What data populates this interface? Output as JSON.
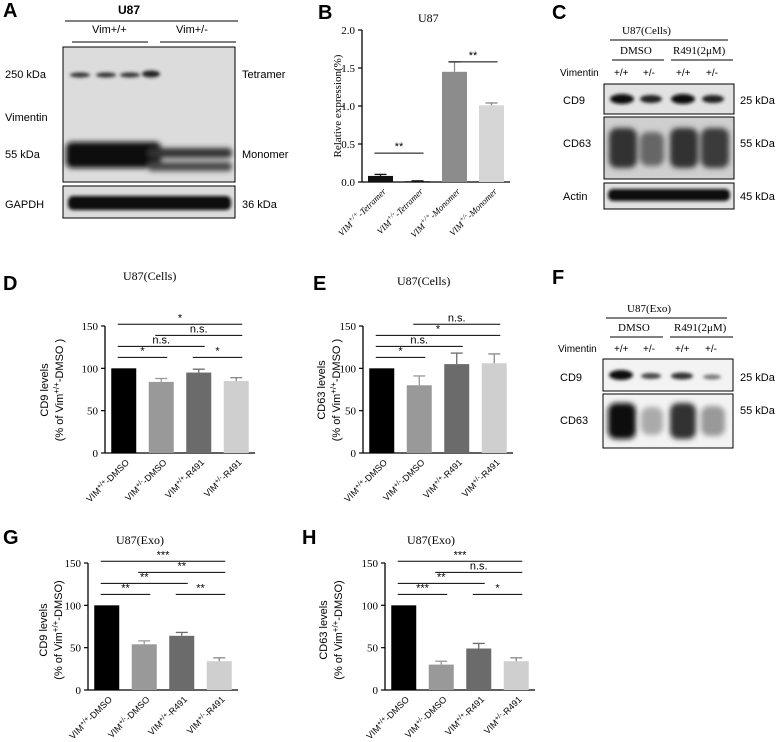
{
  "blot_A": {
    "label": "A",
    "cell": "U87",
    "groups": [
      "Vim+/+",
      "Vim+/-"
    ],
    "left_labels": [
      "250 kDa",
      "Vimentin",
      "55 kDa",
      "GAPDH"
    ],
    "right_labels": [
      "Tetramer",
      "Monomer",
      "36 kDa"
    ]
  },
  "blot_C": {
    "label": "C",
    "title": "U87(Cells)",
    "groups": [
      "DMSO",
      "R491(2μM)"
    ],
    "row_label": "Vimentin",
    "genotypes": [
      "+/+",
      "+/-",
      "+/+",
      "+/-"
    ],
    "proteins": [
      "CD9",
      "CD63",
      "Actin"
    ],
    "sizes": [
      "25 kDa",
      "55 kDa",
      "45 kDa"
    ]
  },
  "blot_F": {
    "label": "F",
    "title": "U87(Exo)",
    "groups": [
      "DMSO",
      "R491(2μM)"
    ],
    "row_label": "Vimentin",
    "genotypes": [
      "+/+",
      "+/-",
      "+/+",
      "+/-"
    ],
    "proteins": [
      "CD9",
      "CD63"
    ],
    "sizes": [
      "25 kDa",
      "55 kDa"
    ]
  },
  "chart_data": [
    {
      "panel": "B",
      "type": "bar",
      "title": "U87",
      "xlabel": "",
      "ylabel": "Relative expression(%)",
      "ylim": [
        0,
        2.0
      ],
      "yticks": [
        "0.0",
        "0.5",
        "1.0",
        "1.5",
        "2.0"
      ],
      "categories": [
        "VIM+/+-Tetramer",
        "VIM+/--Tetramer",
        "VIM+/+-Monomer",
        "VIM+/--Monomer"
      ],
      "values": [
        0.08,
        0.01,
        1.45,
        1.01
      ],
      "errors": [
        0.02,
        0.005,
        0.13,
        0.03
      ],
      "colors": [
        "#111111",
        "#111111",
        "#8c8c8c",
        "#d6d6d6"
      ],
      "significance": [
        "**",
        "**"
      ]
    },
    {
      "panel": "D",
      "type": "bar",
      "title": "U87(Cells)",
      "xlabel": "",
      "ylabel": "CD9 levels",
      "ylabel2": "(% of Vim+/+-DMSO )",
      "ylim": [
        0,
        150
      ],
      "yticks": [
        "0",
        "50",
        "100",
        "150"
      ],
      "categories": [
        "VIM+/+-DMSO",
        "VIM+/--DMSO",
        "VIM+/+-R491",
        "VIM+/--R491"
      ],
      "values": [
        100,
        84,
        95,
        85
      ],
      "errors": [
        0,
        4,
        4,
        4
      ],
      "colors": [
        "#000000",
        "#999999",
        "#6b6b6b",
        "#cfcfcf"
      ],
      "significance": [
        "*",
        "n.s.",
        "*",
        "n.s.",
        "*"
      ]
    },
    {
      "panel": "E",
      "type": "bar",
      "title": "U87(Cells)",
      "xlabel": "",
      "ylabel": "CD63 levels",
      "ylabel2": "(% of Vim+/+-DMSO )",
      "ylim": [
        0,
        150
      ],
      "yticks": [
        "0",
        "50",
        "100",
        "150"
      ],
      "categories": [
        "VIM+/+-DMSO",
        "VIM+/--DMSO",
        "VIM+/+-R491",
        "VIM+/--R491"
      ],
      "values": [
        100,
        80,
        105,
        106
      ],
      "errors": [
        0,
        11,
        13,
        11
      ],
      "colors": [
        "#000000",
        "#999999",
        "#6b6b6b",
        "#cfcfcf"
      ],
      "significance": [
        "*",
        "n.s.",
        "*",
        "n.s."
      ]
    },
    {
      "panel": "G",
      "type": "bar",
      "title": "U87(Exo)",
      "xlabel": "",
      "ylabel": "CD9 levels",
      "ylabel2": "(% of Vim+/+-DMSO)",
      "ylim": [
        0,
        150
      ],
      "yticks": [
        "0",
        "50",
        "100",
        "150"
      ],
      "categories": [
        "VIM+/+-DMSO",
        "VIM+/--DMSO",
        "VIM+/+-R491",
        "VIM+/--R491"
      ],
      "values": [
        100,
        54,
        64,
        34
      ],
      "errors": [
        0,
        4,
        4,
        4
      ],
      "colors": [
        "#000000",
        "#999999",
        "#6b6b6b",
        "#cfcfcf"
      ],
      "significance": [
        "**",
        "**",
        "**",
        "**",
        "***"
      ]
    },
    {
      "panel": "H",
      "type": "bar",
      "title": "U87(Exo)",
      "xlabel": "",
      "ylabel": "CD63 levels",
      "ylabel2": "(% of Vim+/+-DMSO)",
      "ylim": [
        0,
        150
      ],
      "yticks": [
        "0",
        "50",
        "100",
        "150"
      ],
      "categories": [
        "VIM+/+-DMSO",
        "VIM+/--DMSO",
        "VIM+/+-R491",
        "VIM+/--R491"
      ],
      "values": [
        100,
        30,
        49,
        34
      ],
      "errors": [
        0,
        4,
        6,
        4
      ],
      "colors": [
        "#000000",
        "#999999",
        "#6b6b6b",
        "#cfcfcf"
      ],
      "significance": [
        "***",
        "*",
        "**",
        "n.s.",
        "***"
      ]
    }
  ]
}
